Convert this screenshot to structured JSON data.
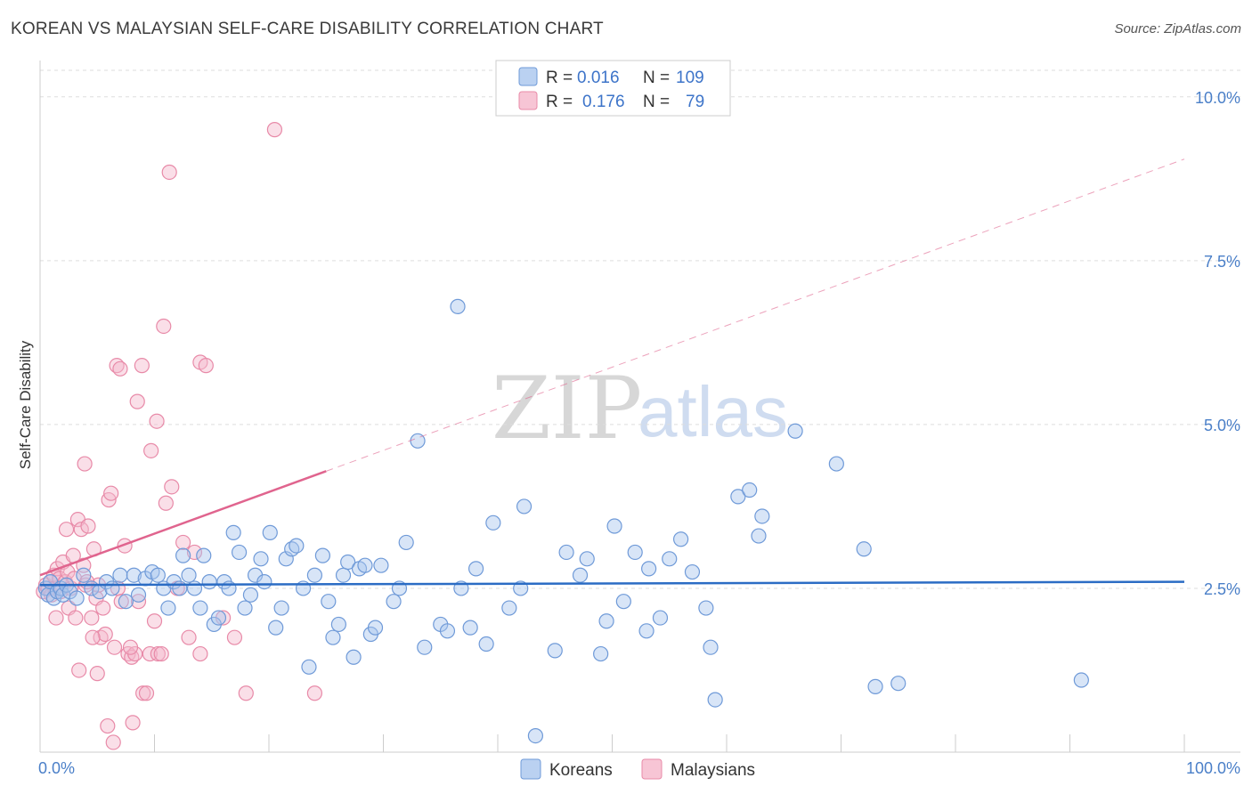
{
  "title": "KOREAN VS MALAYSIAN SELF-CARE DISABILITY CORRELATION CHART",
  "source": "Source: ZipAtlas.com",
  "watermark": {
    "zip": "ZIP",
    "atlas": "atlas"
  },
  "legend": {
    "koreans": {
      "r_label": "R =",
      "r_value": "0.016",
      "n_label": "N =",
      "n_value": "109"
    },
    "malaysians": {
      "r_label": "R =",
      "r_value": "0.176",
      "n_label": "N =",
      "n_value": "79"
    }
  },
  "bottom_legend": {
    "koreans": "Koreans",
    "malaysians": "Malaysians"
  },
  "colors": {
    "korean_fill": "#a9c6ee",
    "korean_stroke": "#6f9ad8",
    "korean_line": "#2b6cc4",
    "malaysian_fill": "#f5b7cb",
    "malaysian_stroke": "#e88aa8",
    "malaysian_line": "#e0648e",
    "grid": "#dddddd",
    "tick_label": "#4a7fc8"
  },
  "chart_data": {
    "type": "scatter",
    "title": "KOREAN VS MALAYSIAN SELF-CARE DISABILITY CORRELATION CHART",
    "xlabel": "",
    "ylabel": "Self-Care Disability",
    "xlim": [
      0,
      100
    ],
    "ylim": [
      0,
      10.5
    ],
    "x_tick_labels": [
      "0.0%",
      "100.0%"
    ],
    "y_ticks": [
      2.5,
      5.0,
      7.5,
      10.0
    ],
    "y_tick_labels": [
      "2.5%",
      "5.0%",
      "7.5%",
      "10.0%"
    ],
    "grid": "horizontal dashed",
    "series": [
      {
        "name": "Koreans",
        "trend": {
          "x": [
            0,
            100
          ],
          "y": [
            2.55,
            2.6
          ],
          "style": "solid"
        },
        "points": [
          [
            0.5,
            2.5
          ],
          [
            0.7,
            2.4
          ],
          [
            0.9,
            2.6
          ],
          [
            1.2,
            2.35
          ],
          [
            1.5,
            2.45
          ],
          [
            1.8,
            2.5
          ],
          [
            2.0,
            2.4
          ],
          [
            2.3,
            2.55
          ],
          [
            2.6,
            2.45
          ],
          [
            3.2,
            2.35
          ],
          [
            3.8,
            2.7
          ],
          [
            4.5,
            2.5
          ],
          [
            5.2,
            2.45
          ],
          [
            5.8,
            2.6
          ],
          [
            6.3,
            2.5
          ],
          [
            7.0,
            2.7
          ],
          [
            7.5,
            2.3
          ],
          [
            8.2,
            2.7
          ],
          [
            8.6,
            2.4
          ],
          [
            9.2,
            2.65
          ],
          [
            9.8,
            2.75
          ],
          [
            10.3,
            2.7
          ],
          [
            10.8,
            2.5
          ],
          [
            11.2,
            2.2
          ],
          [
            11.7,
            2.6
          ],
          [
            12.2,
            2.5
          ],
          [
            12.5,
            3.0
          ],
          [
            13.0,
            2.7
          ],
          [
            13.5,
            2.5
          ],
          [
            14.0,
            2.2
          ],
          [
            14.3,
            3.0
          ],
          [
            14.8,
            2.6
          ],
          [
            15.2,
            1.95
          ],
          [
            15.6,
            2.05
          ],
          [
            16.1,
            2.6
          ],
          [
            16.5,
            2.5
          ],
          [
            16.9,
            3.35
          ],
          [
            17.4,
            3.05
          ],
          [
            17.9,
            2.2
          ],
          [
            18.4,
            2.4
          ],
          [
            18.8,
            2.7
          ],
          [
            19.3,
            2.95
          ],
          [
            19.6,
            2.6
          ],
          [
            20.1,
            3.35
          ],
          [
            20.6,
            1.9
          ],
          [
            21.1,
            2.2
          ],
          [
            21.5,
            2.95
          ],
          [
            22.0,
            3.1
          ],
          [
            22.4,
            3.15
          ],
          [
            23.0,
            2.5
          ],
          [
            23.5,
            1.3
          ],
          [
            24.0,
            2.7
          ],
          [
            24.7,
            3.0
          ],
          [
            25.2,
            2.3
          ],
          [
            25.6,
            1.75
          ],
          [
            26.1,
            1.95
          ],
          [
            26.5,
            2.7
          ],
          [
            26.9,
            2.9
          ],
          [
            27.4,
            1.45
          ],
          [
            27.9,
            2.8
          ],
          [
            28.4,
            2.85
          ],
          [
            28.9,
            1.8
          ],
          [
            29.3,
            1.9
          ],
          [
            29.8,
            2.85
          ],
          [
            30.9,
            2.3
          ],
          [
            31.4,
            2.5
          ],
          [
            32.0,
            3.2
          ],
          [
            33.0,
            4.75
          ],
          [
            33.6,
            1.6
          ],
          [
            35.0,
            1.95
          ],
          [
            35.6,
            1.85
          ],
          [
            36.8,
            2.5
          ],
          [
            37.6,
            1.9
          ],
          [
            38.1,
            2.8
          ],
          [
            39.0,
            1.65
          ],
          [
            39.6,
            3.5
          ],
          [
            41.0,
            2.2
          ],
          [
            42.0,
            2.5
          ],
          [
            42.3,
            3.75
          ],
          [
            43.3,
            0.25
          ],
          [
            45.0,
            1.55
          ],
          [
            46.0,
            3.05
          ],
          [
            47.2,
            2.7
          ],
          [
            47.8,
            2.95
          ],
          [
            49.0,
            1.5
          ],
          [
            49.5,
            2.0
          ],
          [
            50.2,
            3.45
          ],
          [
            51.0,
            2.3
          ],
          [
            52.0,
            3.05
          ],
          [
            53.0,
            1.85
          ],
          [
            53.2,
            2.8
          ],
          [
            54.2,
            2.05
          ],
          [
            55.0,
            2.95
          ],
          [
            56.0,
            3.25
          ],
          [
            57.0,
            2.75
          ],
          [
            58.2,
            2.2
          ],
          [
            58.6,
            1.6
          ],
          [
            59.0,
            0.8
          ],
          [
            61.0,
            3.9
          ],
          [
            62.0,
            4.0
          ],
          [
            62.8,
            3.3
          ],
          [
            63.1,
            3.6
          ],
          [
            66.0,
            4.9
          ],
          [
            69.6,
            4.4
          ],
          [
            72.0,
            3.1
          ],
          [
            73.0,
            1.0
          ],
          [
            75.0,
            1.05
          ],
          [
            91.0,
            1.1
          ],
          [
            36.5,
            6.8
          ]
        ]
      },
      {
        "name": "Malaysians",
        "trend": {
          "x": [
            0,
            100
          ],
          "y": [
            2.7,
            9.05
          ],
          "solid_until_x": 25,
          "style": "solid-then-dashed"
        },
        "points": [
          [
            0.3,
            2.45
          ],
          [
            0.5,
            2.55
          ],
          [
            0.7,
            2.5
          ],
          [
            0.9,
            2.6
          ],
          [
            1.0,
            2.4
          ],
          [
            1.2,
            2.7
          ],
          [
            1.3,
            2.5
          ],
          [
            1.5,
            2.8
          ],
          [
            1.7,
            2.65
          ],
          [
            1.8,
            2.45
          ],
          [
            2.0,
            2.9
          ],
          [
            2.2,
            2.6
          ],
          [
            2.4,
            2.75
          ],
          [
            2.5,
            2.2
          ],
          [
            2.7,
            2.5
          ],
          [
            2.9,
            3.0
          ],
          [
            3.0,
            2.65
          ],
          [
            3.1,
            2.05
          ],
          [
            3.3,
            3.55
          ],
          [
            3.6,
            3.4
          ],
          [
            3.8,
            2.85
          ],
          [
            4.0,
            2.55
          ],
          [
            4.2,
            3.45
          ],
          [
            4.5,
            2.05
          ],
          [
            4.7,
            3.1
          ],
          [
            4.9,
            2.35
          ],
          [
            5.1,
            2.55
          ],
          [
            5.3,
            1.75
          ],
          [
            5.5,
            2.2
          ],
          [
            5.7,
            1.8
          ],
          [
            6.0,
            3.85
          ],
          [
            6.2,
            3.95
          ],
          [
            6.5,
            1.6
          ],
          [
            6.8,
            2.5
          ],
          [
            7.1,
            2.3
          ],
          [
            7.4,
            3.15
          ],
          [
            7.7,
            1.5
          ],
          [
            8.0,
            1.45
          ],
          [
            8.3,
            1.5
          ],
          [
            8.6,
            2.3
          ],
          [
            9.0,
            0.9
          ],
          [
            9.3,
            0.9
          ],
          [
            9.6,
            1.5
          ],
          [
            10.0,
            2.0
          ],
          [
            10.3,
            1.5
          ],
          [
            10.6,
            1.5
          ],
          [
            11.0,
            3.8
          ],
          [
            11.5,
            4.05
          ],
          [
            12.0,
            2.5
          ],
          [
            12.5,
            3.2
          ],
          [
            13.0,
            1.75
          ],
          [
            13.5,
            3.05
          ],
          [
            1.4,
            2.05
          ],
          [
            2.3,
            3.4
          ],
          [
            3.4,
            1.25
          ],
          [
            3.9,
            4.4
          ],
          [
            4.1,
            2.6
          ],
          [
            4.6,
            1.75
          ],
          [
            5.0,
            1.2
          ],
          [
            5.9,
            0.4
          ],
          [
            6.4,
            0.15
          ],
          [
            6.7,
            5.9
          ],
          [
            7.0,
            5.85
          ],
          [
            7.9,
            1.6
          ],
          [
            8.1,
            0.45
          ],
          [
            8.5,
            5.35
          ],
          [
            8.9,
            5.9
          ],
          [
            9.7,
            4.6
          ],
          [
            10.2,
            5.05
          ],
          [
            10.8,
            6.5
          ],
          [
            11.3,
            8.85
          ],
          [
            14.0,
            5.95
          ],
          [
            14.5,
            5.9
          ],
          [
            14.0,
            1.5
          ],
          [
            16.0,
            2.05
          ],
          [
            17.0,
            1.75
          ],
          [
            18.0,
            0.9
          ],
          [
            20.5,
            9.5
          ],
          [
            24.0,
            0.9
          ]
        ]
      }
    ]
  }
}
